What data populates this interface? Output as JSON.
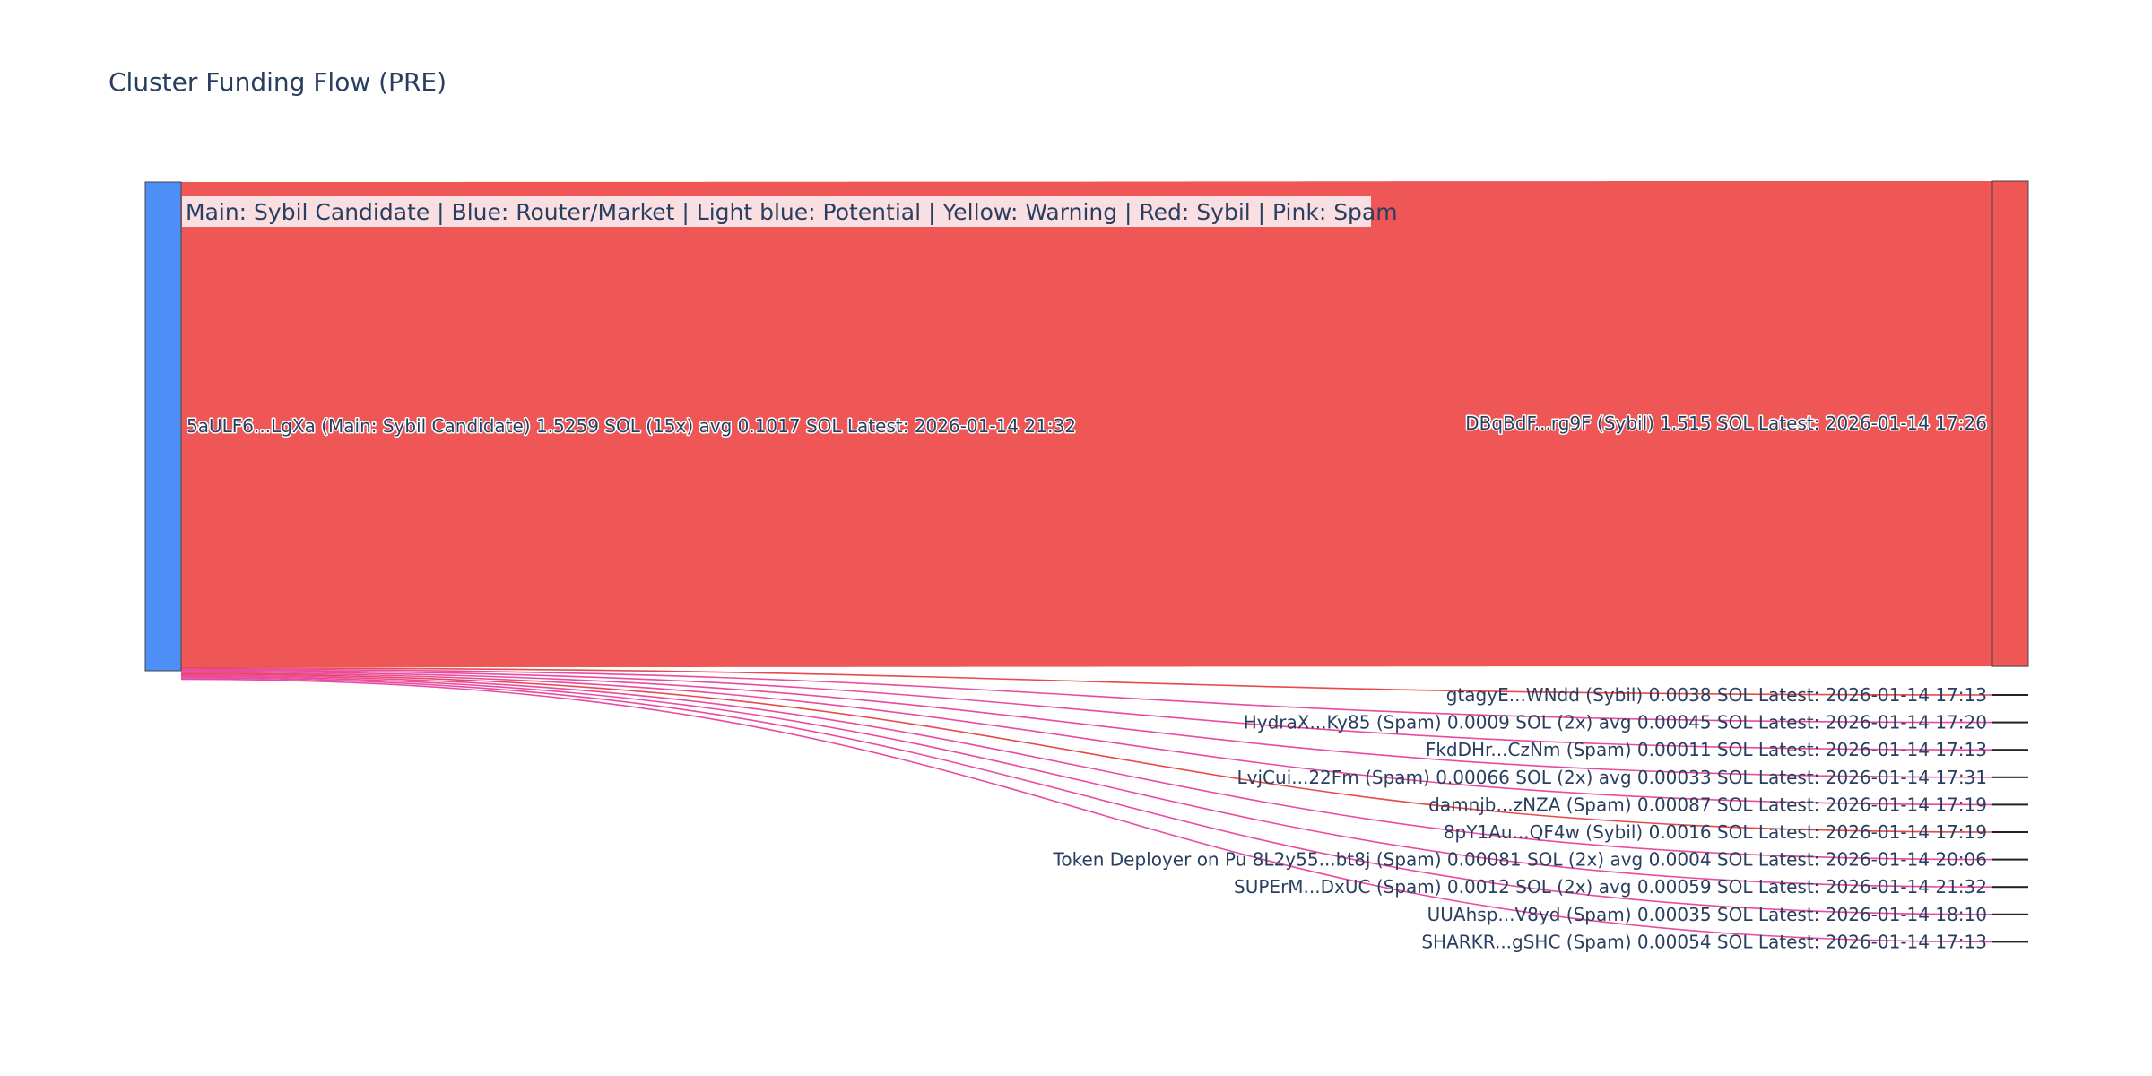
{
  "chart_data": {
    "type": "sankey",
    "title": "Cluster Funding Flow (PRE)",
    "legend_text": "Main: Sybil Candidate  |  Blue: Router/Market | Light blue: Potential | Yellow: Warning | Red: Sybil | Pink: Spam",
    "colors": {
      "source_node": "#4d8ef7",
      "sybil_link": "#ef5656",
      "sybil_thin_link": "#e84a4a",
      "spam_link": "#ea4aa0",
      "legend_bg": "#f9dfe1",
      "text": "#2a3f5f"
    },
    "source": {
      "label": "5aULF6...LgXa (Main: Sybil Candidate) 1.5259 SOL (15x) avg 0.1017 SOL Latest: 2026-01-14 21:32",
      "total": 1.5259
    },
    "targets": [
      {
        "label": "DBqBdF...rg9F (Sybil) 1.515 SOL Latest: 2026-01-14 17:26",
        "value": 1.515,
        "category": "Sybil"
      },
      {
        "label": "gtagyE...WNdd (Sybil) 0.0038 SOL Latest: 2026-01-14 17:13",
        "value": 0.0038,
        "category": "Sybil"
      },
      {
        "label": "HydraX...Ky85 (Spam) 0.0009 SOL (2x) avg 0.00045 SOL Latest: 2026-01-14 17:20",
        "value": 0.0009,
        "category": "Spam"
      },
      {
        "label": "FkdDHr...CzNm (Spam) 0.00011 SOL Latest: 2026-01-14 17:13",
        "value": 0.00011,
        "category": "Spam"
      },
      {
        "label": "LvjCui...22Fm (Spam) 0.00066 SOL (2x) avg 0.00033 SOL Latest: 2026-01-14 17:31",
        "value": 0.00066,
        "category": "Spam"
      },
      {
        "label": "damnjb...zNZA (Spam) 0.00087 SOL Latest: 2026-01-14 17:19",
        "value": 0.00087,
        "category": "Spam"
      },
      {
        "label": "8pY1Au...QF4w (Sybil) 0.0016 SOL Latest: 2026-01-14 17:19",
        "value": 0.0016,
        "category": "Sybil"
      },
      {
        "label": "Token Deployer on Pu 8L2y55...bt8j (Spam) 0.00081 SOL (2x) avg 0.0004 SOL Latest: 2026-01-14 20:06",
        "value": 0.00081,
        "category": "Spam"
      },
      {
        "label": "SUPErM...DxUC (Spam) 0.0012 SOL (2x) avg 0.00059 SOL Latest: 2026-01-14 21:32",
        "value": 0.0012,
        "category": "Spam"
      },
      {
        "label": "UUAhsp...V8yd (Spam) 0.00035 SOL Latest: 2026-01-14 18:10",
        "value": 0.00035,
        "category": "Spam"
      },
      {
        "label": "SHARKR...gSHC (Spam) 0.00054 SOL Latest: 2026-01-14 17:13",
        "value": 0.00054,
        "category": "Spam"
      }
    ]
  }
}
